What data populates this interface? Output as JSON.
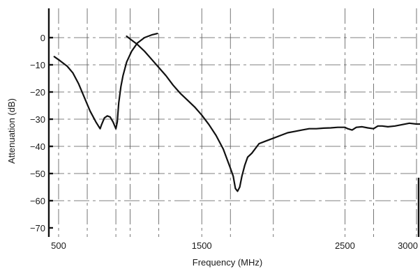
{
  "chart_data": {
    "type": "line",
    "title": "",
    "xlabel": "Frequency (MHz)",
    "ylabel": "Attenuation (dB)",
    "xlim": [
      470,
      3030
    ],
    "ylim": [
      -71,
      10
    ],
    "x_ticks": [
      500,
      1500,
      2500,
      3000
    ],
    "y_ticks": [
      0,
      -10,
      -20,
      -30,
      -40,
      -50,
      -60,
      -70
    ],
    "x_ticks_print": [
      500,
      1500,
      2500
    ],
    "x_tick_labels": [
      "500",
      "1500",
      "2500",
      "3000"
    ],
    "y_tick_labels": [
      "0",
      "−10",
      "−20",
      "−30",
      "−40",
      "−50",
      "−60",
      "−70"
    ],
    "x_grid": [
      500,
      700,
      900,
      1000,
      1200,
      1500,
      1700,
      2000,
      2500,
      2700,
      3000
    ],
    "y_grid": [
      0,
      -10,
      -20,
      -30,
      -40,
      -50,
      -60
    ],
    "grid": true,
    "series": [
      {
        "x": [
          470,
          510,
          560,
          600,
          640,
          680,
          720,
          760,
          790,
          800,
          820,
          840,
          860,
          880,
          900,
          910,
          920,
          935,
          950,
          975,
          1010,
          1050,
          1100,
          1150,
          1190
        ],
        "y": [
          -7,
          -8.5,
          -10.5,
          -13,
          -17,
          -22,
          -27,
          -31,
          -33.5,
          -32,
          -29.5,
          -28.8,
          -29.2,
          -31,
          -33.5,
          -31,
          -24,
          -18,
          -14,
          -9,
          -5,
          -2,
          0,
          1,
          1.5
        ]
      },
      {
        "x": [
          975,
          1000,
          1050,
          1100,
          1150,
          1200,
          1250,
          1300,
          1350,
          1400,
          1450,
          1500,
          1550,
          1600,
          1650,
          1700,
          1720,
          1735,
          1750,
          1765,
          1780,
          1800,
          1820,
          1850,
          1900,
          1950,
          2000,
          2050,
          2100,
          2150,
          2200,
          2250,
          2300,
          2350,
          2400,
          2450,
          2500,
          2520,
          2550,
          2580,
          2620,
          2660,
          2700,
          2730,
          2760,
          2800,
          2850,
          2900,
          2950,
          3000,
          3030
        ],
        "y": [
          0.5,
          -0.5,
          -2.5,
          -5,
          -8,
          -11,
          -14,
          -17.5,
          -20.5,
          -23,
          -25.5,
          -28.5,
          -32,
          -36,
          -41,
          -48,
          -51,
          -55.5,
          -56.5,
          -55,
          -51,
          -47,
          -44,
          -42.5,
          -39,
          -38,
          -37,
          -36,
          -35,
          -34.5,
          -34,
          -33.5,
          -33.5,
          -33.3,
          -33.2,
          -33,
          -33,
          -33.5,
          -34,
          -33,
          -32.8,
          -33.2,
          -33.5,
          -32.5,
          -32.5,
          -32.8,
          -32.5,
          -32,
          -31.5,
          -31.8,
          -31.8
        ]
      }
    ]
  }
}
